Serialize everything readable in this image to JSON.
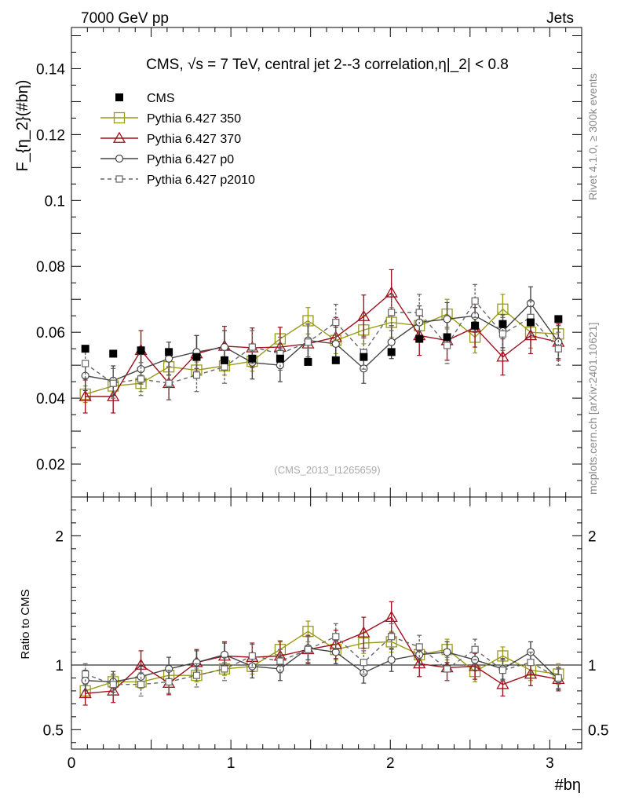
{
  "header": {
    "left": "7000 GeV pp",
    "right": "Jets"
  },
  "side_labels": {
    "rivet": "Rivet 4.1.0, ≥ 300k events",
    "mcplots": "mcplots.cern.ch [arXiv:2401.10621]"
  },
  "watermark": "(CMS_2013_I1265659)",
  "colors": {
    "cms": "#000000",
    "p350": "#9a9a1a",
    "p370": "#a0101e",
    "p0": "#444444",
    "p2010": "#666666"
  },
  "chart_data": [
    {
      "type": "scatter",
      "title": "CMS, √s = 7 TeV, central jet 2--3 correlation,η|_2| < 0.8",
      "ylabel": "F_{η_2}(#bη)",
      "xlabel": "#bη",
      "xlim": [
        0,
        3.2
      ],
      "ylim": [
        0.01,
        0.1525
      ],
      "yticks": [
        {
          "v": 0.02,
          "label": "0.02"
        },
        {
          "v": 0.04,
          "label": "0.04"
        },
        {
          "v": 0.06,
          "label": "0.06"
        },
        {
          "v": 0.08,
          "label": "0.08"
        },
        {
          "v": 0.1,
          "label": "0.1"
        },
        {
          "v": 0.12,
          "label": "0.12"
        },
        {
          "v": 0.14,
          "label": "0.14"
        }
      ],
      "x": [
        0.087,
        0.262,
        0.436,
        0.611,
        0.785,
        0.96,
        1.134,
        1.309,
        1.484,
        1.658,
        1.833,
        2.007,
        2.182,
        2.356,
        2.531,
        2.705,
        2.88,
        3.054
      ],
      "series": [
        {
          "name": "CMS",
          "key": "cms",
          "values": [
            0.055,
            0.0535,
            0.0545,
            0.054,
            0.0525,
            0.0515,
            0.052,
            0.052,
            0.051,
            0.0515,
            0.0525,
            0.054,
            0.058,
            0.0585,
            0.062,
            0.0625,
            0.063,
            0.064
          ],
          "errors": [
            0.0005,
            0.0005,
            0.0005,
            0.0005,
            0.0005,
            0.0005,
            0.0005,
            0.0005,
            0.0005,
            0.0005,
            0.0005,
            0.0005,
            0.0005,
            0.0005,
            0.0005,
            0.0005,
            0.0005,
            0.0005
          ]
        },
        {
          "name": "Pythia 6.427 350",
          "key": "p350",
          "values": [
            0.0412,
            0.0437,
            0.0445,
            0.0495,
            0.0485,
            0.0498,
            0.0512,
            0.058,
            0.0635,
            0.0575,
            0.0607,
            0.063,
            0.062,
            0.0655,
            0.0585,
            0.067,
            0.06,
            0.0595
          ],
          "errors": [
            0.0025,
            0.0025,
            0.0025,
            0.0025,
            0.0025,
            0.0028,
            0.003,
            0.0035,
            0.004,
            0.004,
            0.0042,
            0.0045,
            0.0045,
            0.0045,
            0.0048,
            0.0045,
            0.0048,
            0.0048
          ]
        },
        {
          "name": "Pythia 6.427 370",
          "key": "p370",
          "values": [
            0.0405,
            0.0405,
            0.0545,
            0.0445,
            0.0535,
            0.0558,
            0.0553,
            0.0555,
            0.0565,
            0.0585,
            0.0648,
            0.072,
            0.059,
            0.0575,
            0.0615,
            0.0525,
            0.059,
            0.057
          ],
          "errors": [
            0.005,
            0.005,
            0.006,
            0.005,
            0.0055,
            0.006,
            0.006,
            0.006,
            0.006,
            0.006,
            0.0065,
            0.007,
            0.006,
            0.006,
            0.006,
            0.0055,
            0.0055,
            0.0055
          ]
        },
        {
          "name": "Pythia 6.427 p0",
          "key": "p0",
          "values": [
            0.0468,
            0.0453,
            0.0488,
            0.052,
            0.054,
            0.0555,
            0.0508,
            0.05,
            0.0575,
            0.0565,
            0.049,
            0.057,
            0.063,
            0.064,
            0.065,
            0.0603,
            0.0688,
            0.057
          ],
          "errors": [
            0.0045,
            0.0045,
            0.0045,
            0.005,
            0.005,
            0.005,
            0.005,
            0.005,
            0.005,
            0.005,
            0.0045,
            0.005,
            0.005,
            0.005,
            0.005,
            0.005,
            0.005,
            0.005
          ]
        },
        {
          "name": "Pythia 6.427 p2010",
          "key": "p2010",
          "values": [
            0.0505,
            0.0445,
            0.0458,
            0.0445,
            0.047,
            0.0495,
            0.0555,
            0.0535,
            0.057,
            0.063,
            0.0538,
            0.066,
            0.066,
            0.056,
            0.0695,
            0.0595,
            0.0645,
            0.055
          ],
          "errors": [
            0.0045,
            0.0045,
            0.005,
            0.005,
            0.005,
            0.005,
            0.005,
            0.005,
            0.0055,
            0.0055,
            0.005,
            0.0055,
            0.0055,
            0.0055,
            0.005,
            0.005,
            0.005,
            0.005
          ]
        }
      ]
    },
    {
      "type": "scatter",
      "title": "",
      "ylabel": "Ratio to CMS",
      "xlabel": "#bη",
      "xlim": [
        0,
        3.2
      ],
      "ylim": [
        0.35,
        2.3
      ],
      "reference_line": 1,
      "yticks": [
        {
          "v": 0.5,
          "label": "0.5"
        },
        {
          "v": 1,
          "label": "1"
        },
        {
          "v": 2,
          "label": "2"
        }
      ],
      "xticks": [
        {
          "v": 0,
          "label": "0"
        },
        {
          "v": 1,
          "label": "1"
        },
        {
          "v": 2,
          "label": "2"
        },
        {
          "v": 3,
          "label": "3"
        }
      ],
      "x": [
        0.087,
        0.262,
        0.436,
        0.611,
        0.785,
        0.96,
        1.134,
        1.309,
        1.484,
        1.658,
        1.833,
        2.007,
        2.182,
        2.356,
        2.531,
        2.705,
        2.88,
        3.054
      ],
      "series": [
        {
          "name": "Pythia 6.427 350",
          "key": "p350",
          "values": [
            0.8,
            0.87,
            0.87,
            0.92,
            0.92,
            0.97,
            0.99,
            1.12,
            1.26,
            1.12,
            1.17,
            1.18,
            1.08,
            1.12,
            0.95,
            1.07,
            0.96,
            0.93
          ],
          "errors": [
            0.05,
            0.05,
            0.05,
            0.05,
            0.05,
            0.05,
            0.06,
            0.07,
            0.08,
            0.08,
            0.08,
            0.08,
            0.08,
            0.08,
            0.08,
            0.07,
            0.08,
            0.08
          ]
        },
        {
          "name": "Pythia 6.427 370",
          "key": "p370",
          "values": [
            0.78,
            0.8,
            1.0,
            0.86,
            1.02,
            1.07,
            1.06,
            1.07,
            1.12,
            1.16,
            1.25,
            1.37,
            1.01,
            0.98,
            0.99,
            0.85,
            0.93,
            0.89
          ],
          "errors": [
            0.09,
            0.09,
            0.11,
            0.09,
            0.1,
            0.11,
            0.11,
            0.11,
            0.11,
            0.11,
            0.12,
            0.12,
            0.1,
            0.1,
            0.1,
            0.09,
            0.09,
            0.09
          ]
        },
        {
          "name": "Pythia 6.427 p0",
          "key": "p0",
          "values": [
            0.88,
            0.87,
            0.91,
            0.97,
            1.02,
            1.08,
            0.99,
            0.97,
            1.13,
            1.1,
            0.94,
            1.04,
            1.08,
            1.1,
            1.04,
            0.97,
            1.1,
            0.89
          ],
          "errors": [
            0.08,
            0.08,
            0.08,
            0.09,
            0.09,
            0.09,
            0.09,
            0.09,
            0.09,
            0.09,
            0.08,
            0.09,
            0.08,
            0.08,
            0.08,
            0.08,
            0.08,
            0.08
          ]
        },
        {
          "name": "Pythia 6.427 p2010",
          "key": "p2010",
          "values": [
            0.93,
            0.85,
            0.85,
            0.87,
            0.92,
            0.97,
            1.07,
            1.03,
            1.12,
            1.22,
            1.02,
            1.22,
            1.14,
            0.97,
            1.12,
            0.96,
            1.02,
            0.9
          ],
          "errors": [
            0.08,
            0.08,
            0.09,
            0.09,
            0.09,
            0.09,
            0.09,
            0.09,
            0.1,
            0.1,
            0.09,
            0.1,
            0.09,
            0.09,
            0.08,
            0.08,
            0.08,
            0.08
          ]
        }
      ]
    }
  ]
}
